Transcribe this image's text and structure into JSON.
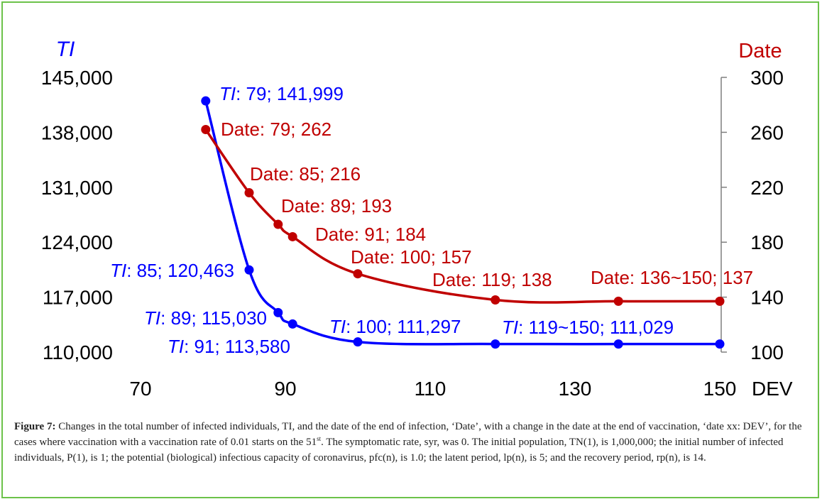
{
  "chart_data": {
    "type": "line",
    "xlabel": "DEV",
    "x_ticks": [
      70,
      90,
      110,
      130,
      150
    ],
    "xlim": [
      70,
      150
    ],
    "y_left": {
      "label": "TI",
      "ticks": [
        "145,000",
        "138,000",
        "131,000",
        "124,000",
        "117,000",
        "110,000"
      ],
      "range": [
        110000,
        145000
      ]
    },
    "y_right": {
      "label": "Date",
      "ticks": [
        "300",
        "260",
        "220",
        "180",
        "140",
        "100"
      ],
      "range": [
        100,
        300
      ]
    },
    "series": [
      {
        "axis": "left",
        "color": "#0000ff",
        "x": [
          79,
          85,
          89,
          91,
          100,
          119,
          136,
          150
        ],
        "y": [
          141999,
          120463,
          115030,
          113580,
          111297,
          111029,
          111029,
          111029
        ],
        "labels": [
          {
            "x": 79,
            "prefix": "TI",
            "text": ": 79;  141,999"
          },
          {
            "x": 85,
            "prefix": "TI",
            "text": ": 85; 120,463"
          },
          {
            "x": 89,
            "prefix": "TI",
            "text": ": 89;  115,030"
          },
          {
            "x": 91,
            "prefix": "TI",
            "text": ": 91; 113,580"
          },
          {
            "x": 100,
            "prefix": "TI",
            "text": ": 100; 111,297"
          },
          {
            "x": 119,
            "prefix": "TI",
            "text": ": 119~150; 111,029"
          }
        ]
      },
      {
        "axis": "right",
        "color": "#c00000",
        "x": [
          79,
          85,
          89,
          91,
          100,
          119,
          136,
          150
        ],
        "y": [
          262,
          216,
          193,
          184,
          157,
          138,
          137,
          137
        ],
        "labels": [
          {
            "x": 79,
            "text": "Date: 79; 262"
          },
          {
            "x": 85,
            "text": "Date: 85; 216"
          },
          {
            "x": 89,
            "text": "Date: 89; 193"
          },
          {
            "x": 91,
            "text": "Date: 91; 184"
          },
          {
            "x": 100,
            "text": "Date: 100; 157"
          },
          {
            "x": 119,
            "text": "Date: 119; 138"
          },
          {
            "x": 136,
            "text": "Date: 136~150; 137"
          }
        ]
      }
    ]
  },
  "caption": {
    "figure_label": "Figure 7:",
    "text_before_sup": " Changes in the total number of infected individuals, TI, and the date of the end of infection, ‘Date’, with a change in the date at the end of vaccination, ‘date xx: DEV’, for the cases where vaccination with a vaccination rate of 0.01 starts on the 51",
    "sup": "st",
    "text_after_sup": ". The symptomatic rate, syr, was 0. The initial population, TN(1), is 1,000,000; the initial number of infected individuals, P(1), is 1; the potential (biological) infectious capacity of coronavirus, pfc(n), is 1.0; the latent period, lp(n), is 5; and the recovery period, rp(n), is 14."
  }
}
